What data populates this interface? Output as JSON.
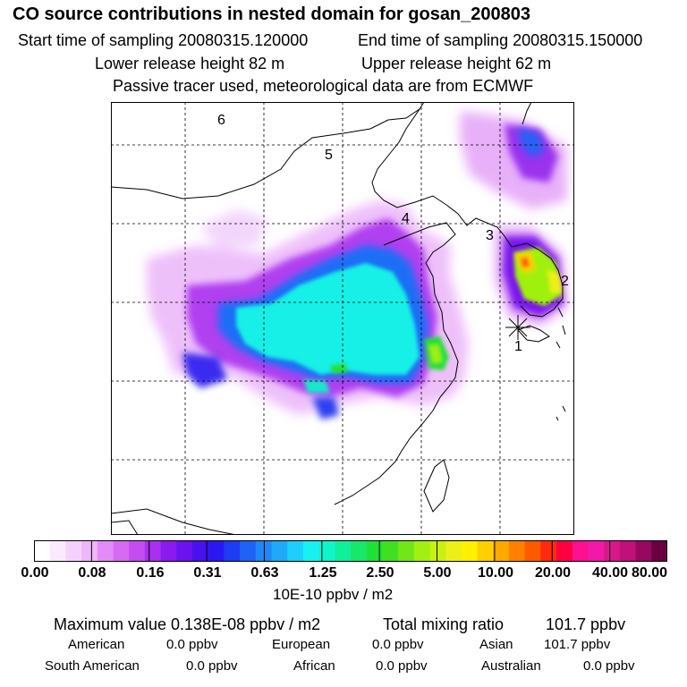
{
  "header": {
    "title": "CO  source contributions in nested domain for gosan_200803",
    "start_time": "Start time of sampling 20080315.120000",
    "end_time": "End time of sampling 20080315.150000",
    "lower_height": "Lower release height   82 m",
    "upper_height": "Upper release height   62 m",
    "tracer_note": "Passive tracer used, meteorological data are from ECMWF"
  },
  "map": {
    "station_markers": [
      "1",
      "2",
      "3",
      "4",
      "5",
      "6"
    ]
  },
  "colorbar": {
    "ticks": [
      "0.00",
      "0.08",
      "0.16",
      "0.31",
      "0.63",
      "1.25",
      "2.50",
      "5.00",
      "10.00",
      "20.00",
      "40.00",
      "80.00"
    ],
    "unit": "10E-10 ppbv / m2",
    "colors": [
      "#ffffff",
      "#fbeafe",
      "#f5d2fc",
      "#eeb7fa",
      "#e38cf7",
      "#d56af3",
      "#c44cf0",
      "#a830ee",
      "#8a1aee",
      "#6a12ef",
      "#4a10f0",
      "#2a18f2",
      "#1d3cf4",
      "#1e62f6",
      "#1e88f8",
      "#1eaaf9",
      "#1dd0fb",
      "#18f0f2",
      "#10f5c8",
      "#10f09a",
      "#18e86a",
      "#20e038",
      "#40e020",
      "#70e818",
      "#a0f010",
      "#c8f010",
      "#ecf018",
      "#fff000",
      "#ffd000",
      "#ffa800",
      "#ff8000",
      "#ff5a00",
      "#ff2a10",
      "#ff0040",
      "#ff1090",
      "#f218a8",
      "#d8188a",
      "#c0107a",
      "#980860",
      "#6a0040"
    ]
  },
  "stats": {
    "max_value_label": "Maximum value  0.138E-08 ppbv / m2",
    "total_mixing_label": "Total mixing ratio",
    "total_mixing_value": "101.7 ppbv",
    "american_label": "American",
    "american_value": "0.0 ppbv",
    "european_label": "European",
    "european_value": "0.0 ppbv",
    "asian_label": "Asian",
    "asian_value": "101.7 ppbv",
    "south_american_label": "South American",
    "south_american_value": "0.0 ppbv",
    "african_label": "African",
    "african_value": "0.0 ppbv",
    "australian_label": "Australian",
    "australian_value": "0.0 ppbv"
  }
}
